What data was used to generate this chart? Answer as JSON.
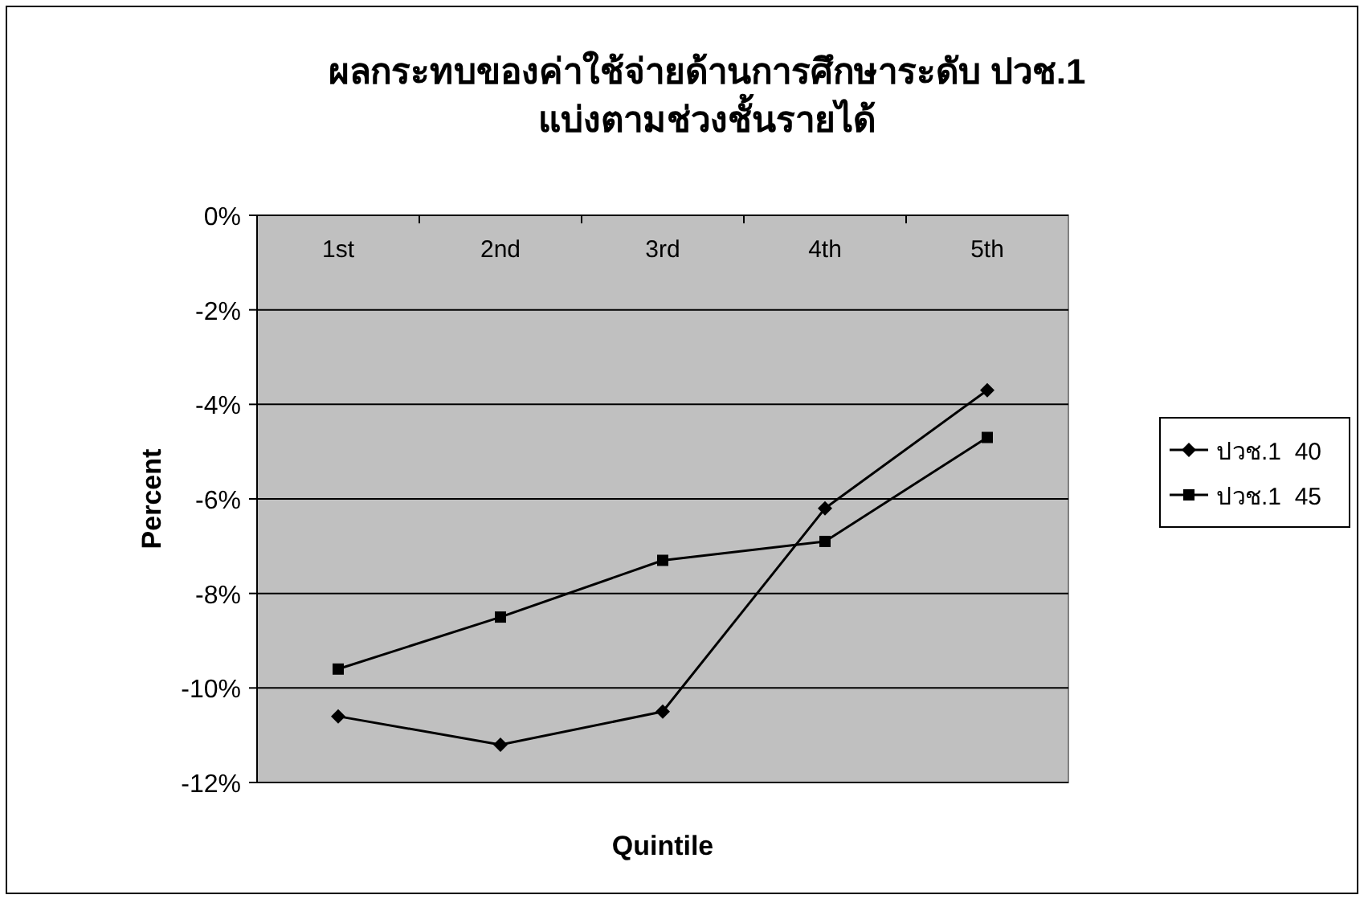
{
  "chart_data": {
    "type": "line",
    "title": "ผลกระทบของค่าใช้จ่ายด้านการศึกษาระดับ ปวช.1\nแบ่งตามช่วงชั้นรายได้",
    "xlabel": "Quintile",
    "ylabel": "Percent",
    "categories": [
      "1st",
      "2nd",
      "3rd",
      "4th",
      "5th"
    ],
    "series": [
      {
        "name": "ปวช.1  40",
        "color": "#000000",
        "marker": "diamond",
        "values": [
          -10.6,
          -11.2,
          -10.5,
          -6.2,
          -3.7
        ]
      },
      {
        "name": "ปวช.1  45",
        "color": "#000000",
        "marker": "square",
        "values": [
          -9.6,
          -8.5,
          -7.3,
          -6.9,
          -4.7
        ]
      }
    ],
    "ylim": [
      -12,
      0
    ],
    "yticks": [
      {
        "value": 0,
        "label": "0%"
      },
      {
        "value": -2,
        "label": "-2%"
      },
      {
        "value": -4,
        "label": "-4%"
      },
      {
        "value": -6,
        "label": "-6%"
      },
      {
        "value": -8,
        "label": "-8%"
      },
      {
        "value": -10,
        "label": "-10%"
      },
      {
        "value": -12,
        "label": "-12%"
      }
    ],
    "grid": "y",
    "legend": "right"
  }
}
